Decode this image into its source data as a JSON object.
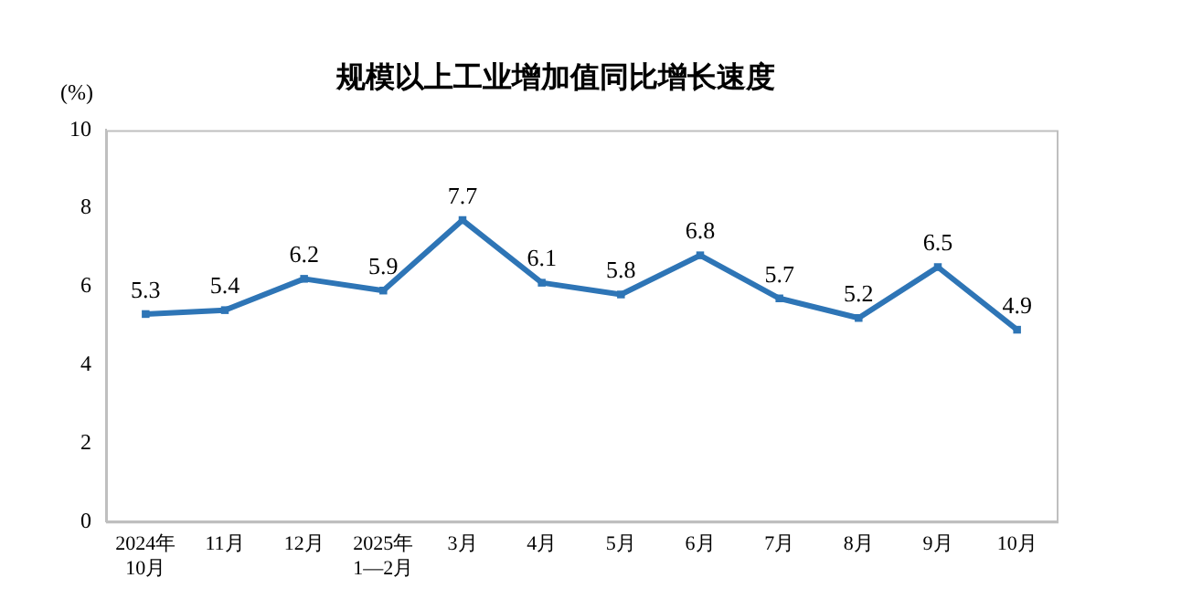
{
  "chart_data": {
    "type": "line",
    "title": "规模以上工业增加值同比增长速度",
    "ylabel": "(%)",
    "categories": [
      "2024年\n10月",
      "11月",
      "12月",
      "2025年\n1—2月",
      "3月",
      "4月",
      "5月",
      "6月",
      "7月",
      "8月",
      "9月",
      "10月"
    ],
    "values": [
      5.3,
      5.4,
      6.2,
      5.9,
      7.7,
      6.1,
      5.8,
      6.8,
      5.7,
      5.2,
      6.5,
      4.9
    ],
    "color": "#2e75b6",
    "marker": "square",
    "line_style": "solid",
    "data_labels": true,
    "ylim": [
      0,
      10
    ],
    "yticks": [
      0,
      2,
      4,
      6,
      8,
      10
    ],
    "grid": false,
    "legend": false
  }
}
